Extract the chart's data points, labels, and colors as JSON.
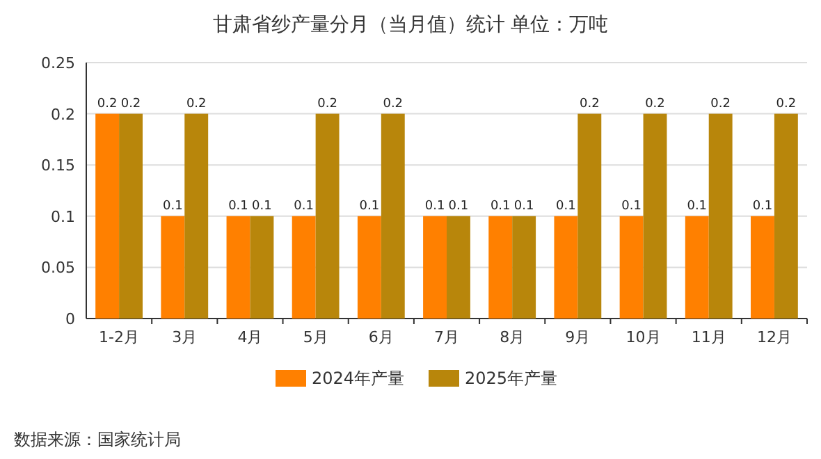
{
  "chart_data": {
    "type": "bar",
    "title": "甘肃省纱产量分月（当月值）统计 单位：万吨",
    "categories": [
      "1-2月",
      "3月",
      "4月",
      "5月",
      "6月",
      "7月",
      "8月",
      "9月",
      "10月",
      "11月",
      "12月"
    ],
    "series": [
      {
        "name": "2024年产量",
        "color": "#ff8000",
        "values": [
          0.2,
          0.1,
          0.1,
          0.1,
          0.1,
          0.1,
          0.1,
          0.1,
          0.1,
          0.1,
          0.1
        ]
      },
      {
        "name": "2025年产量",
        "color": "#b8860b",
        "values": [
          0.2,
          0.2,
          0.1,
          0.2,
          0.2,
          0.1,
          0.1,
          0.2,
          0.2,
          0.2,
          0.2
        ]
      }
    ],
    "ylim": [
      0,
      0.25
    ],
    "yticks": [
      0,
      0.05,
      0.1,
      0.15,
      0.2,
      0.25
    ],
    "grid": "y",
    "legend": "bottom",
    "data_labels": true,
    "annotations": [
      "数据来源：国家统计局"
    ]
  }
}
